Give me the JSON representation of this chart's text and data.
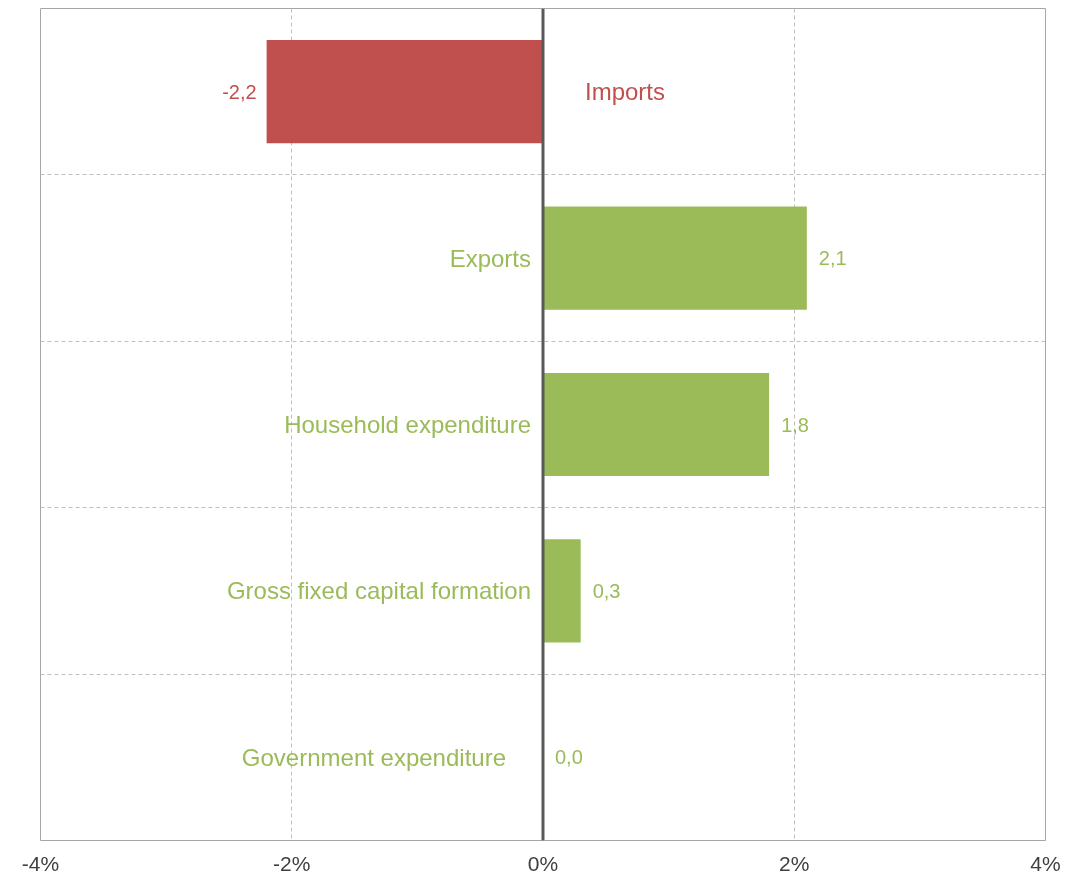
{
  "chart_data": {
    "type": "bar",
    "orientation": "horizontal",
    "categories": [
      "Imports",
      "Exports",
      "Household expenditure",
      "Gross fixed capital formation",
      "Government expenditure"
    ],
    "values": [
      -2.2,
      2.1,
      1.8,
      0.3,
      0.0
    ],
    "colors": [
      "#c0504d",
      "#9bbb59",
      "#9bbb59",
      "#9bbb59",
      "#9bbb59"
    ],
    "value_labels": [
      "-2,2",
      "2,1",
      "1,8",
      "0,3",
      "0,0"
    ],
    "xlim": [
      -4,
      4
    ],
    "xticks": [
      {
        "value": -4,
        "label": "-4%"
      },
      {
        "value": -2,
        "label": "-2%"
      },
      {
        "value": 0,
        "label": "0%"
      },
      {
        "value": 2,
        "label": "2%"
      },
      {
        "value": 4,
        "label": "4%"
      }
    ],
    "grid": true
  }
}
